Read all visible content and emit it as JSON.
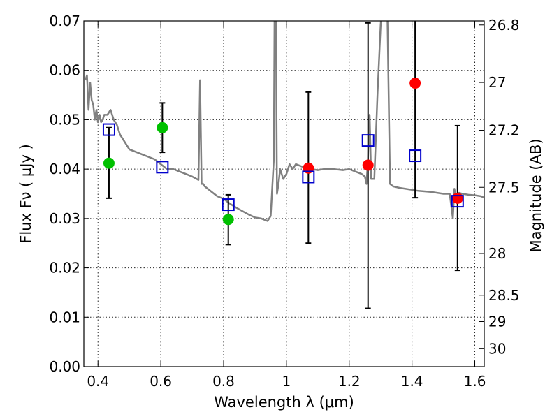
{
  "chart_data": {
    "type": "scatter",
    "xlabel": "Wavelength  λ (μm)",
    "ylabel": "Flux  Fν ( μJy )",
    "ylabel_right": "Magnitude (AB)",
    "xlim": [
      0.355,
      1.63
    ],
    "ylim": [
      0.0,
      0.07
    ],
    "grid": true,
    "x_ticks": [
      {
        "value": 0.4,
        "label": "0.4"
      },
      {
        "value": 0.6,
        "label": "0.6"
      },
      {
        "value": 0.8,
        "label": "0.8"
      },
      {
        "value": 1.0,
        "label": "1"
      },
      {
        "value": 1.2,
        "label": "1.2"
      },
      {
        "value": 1.4,
        "label": "1.4"
      },
      {
        "value": 1.6,
        "label": "1.6"
      }
    ],
    "y_ticks": [
      {
        "value": 0.0,
        "label": "0.00"
      },
      {
        "value": 0.01,
        "label": "0.01"
      },
      {
        "value": 0.02,
        "label": "0.02"
      },
      {
        "value": 0.03,
        "label": "0.03"
      },
      {
        "value": 0.04,
        "label": "0.04"
      },
      {
        "value": 0.05,
        "label": "0.05"
      },
      {
        "value": 0.06,
        "label": "0.06"
      },
      {
        "value": 0.07,
        "label": "0.07"
      }
    ],
    "right_ticks": [
      {
        "value": 26.8,
        "label": "26.8"
      },
      {
        "value": 27.0,
        "label": "27"
      },
      {
        "value": 27.2,
        "label": "27.2"
      },
      {
        "value": 27.5,
        "label": "27.5"
      },
      {
        "value": 28.0,
        "label": "28"
      },
      {
        "value": 28.5,
        "label": "28.5"
      },
      {
        "value": 29.0,
        "label": "29"
      },
      {
        "value": 30.0,
        "label": "30"
      }
    ],
    "model_spectrum": {
      "color": "#808080",
      "x": [
        0.36,
        0.365,
        0.37,
        0.375,
        0.38,
        0.385,
        0.39,
        0.395,
        0.4,
        0.405,
        0.41,
        0.415,
        0.42,
        0.43,
        0.44,
        0.45,
        0.46,
        0.47,
        0.48,
        0.49,
        0.5,
        0.52,
        0.54,
        0.56,
        0.58,
        0.6,
        0.62,
        0.64,
        0.66,
        0.68,
        0.7,
        0.72,
        0.725,
        0.73,
        0.735,
        0.74,
        0.76,
        0.78,
        0.8,
        0.82,
        0.84,
        0.86,
        0.88,
        0.9,
        0.92,
        0.94,
        0.95,
        0.96,
        0.963,
        0.966,
        0.97,
        0.975,
        0.98,
        0.99,
        1.0,
        1.01,
        1.02,
        1.03,
        1.05,
        1.08,
        1.1,
        1.12,
        1.15,
        1.18,
        1.2,
        1.22,
        1.24,
        1.25,
        1.255,
        1.26,
        1.265,
        1.27,
        1.28,
        1.29,
        1.3,
        1.31,
        1.32,
        1.33,
        1.34,
        1.36,
        1.38,
        1.4,
        1.42,
        1.44,
        1.46,
        1.48,
        1.5,
        1.52,
        1.53,
        1.535,
        1.54,
        1.545,
        1.55,
        1.56,
        1.58,
        1.6,
        1.62,
        1.63
      ],
      "y": [
        0.058,
        0.059,
        0.052,
        0.0575,
        0.054,
        0.053,
        0.05,
        0.052,
        0.0495,
        0.051,
        0.0495,
        0.05,
        0.051,
        0.051,
        0.052,
        0.05,
        0.049,
        0.047,
        0.046,
        0.045,
        0.044,
        0.0435,
        0.043,
        0.0425,
        0.042,
        0.041,
        0.04,
        0.04,
        0.0395,
        0.039,
        0.0385,
        0.0378,
        0.058,
        0.037,
        0.037,
        0.0365,
        0.0355,
        0.0345,
        0.034,
        0.033,
        0.0322,
        0.0315,
        0.0308,
        0.0302,
        0.03,
        0.0295,
        0.0305,
        0.042,
        0.078,
        0.078,
        0.035,
        0.037,
        0.04,
        0.038,
        0.039,
        0.041,
        0.04,
        0.041,
        0.0405,
        0.04,
        0.0398,
        0.04,
        0.04,
        0.0398,
        0.04,
        0.0395,
        0.039,
        0.0385,
        0.037,
        0.042,
        0.051,
        0.038,
        0.038,
        0.055,
        0.069,
        0.078,
        0.078,
        0.037,
        0.0365,
        0.0362,
        0.036,
        0.0358,
        0.0356,
        0.0355,
        0.0354,
        0.0352,
        0.035,
        0.035,
        0.03,
        0.036,
        0.034,
        0.033,
        0.0352,
        0.035,
        0.0348,
        0.0347,
        0.0345,
        0.0342
      ]
    },
    "series": [
      {
        "name": "",
        "marker": "circle",
        "color": "#00c000",
        "points": [
          {
            "x": 0.435,
            "y": 0.0412,
            "err_low": 0.0341,
            "err_high": 0.0484
          },
          {
            "x": 0.605,
            "y": 0.0484,
            "err_low": 0.0434,
            "err_high": 0.0534
          },
          {
            "x": 0.815,
            "y": 0.0298,
            "err_low": 0.0247,
            "err_high": 0.0348
          }
        ]
      },
      {
        "name": "",
        "marker": "circle",
        "color": "#ff0000",
        "points": [
          {
            "x": 1.07,
            "y": 0.0402,
            "err_low": 0.025,
            "err_high": 0.0556
          },
          {
            "x": 1.26,
            "y": 0.0408,
            "err_low": 0.0118,
            "err_high": 0.0696
          },
          {
            "x": 1.41,
            "y": 0.0574,
            "err_low": 0.0342,
            "err_high": 0.081
          },
          {
            "x": 1.545,
            "y": 0.0341,
            "err_low": 0.0195,
            "err_high": 0.0488
          }
        ]
      },
      {
        "name": "",
        "marker": "square",
        "color": "#0000cc",
        "points": [
          {
            "x": 0.435,
            "y": 0.048
          },
          {
            "x": 0.605,
            "y": 0.0404
          },
          {
            "x": 0.815,
            "y": 0.0328
          },
          {
            "x": 1.07,
            "y": 0.0384
          },
          {
            "x": 1.26,
            "y": 0.0458
          },
          {
            "x": 1.41,
            "y": 0.0427
          },
          {
            "x": 1.545,
            "y": 0.0335
          }
        ]
      }
    ]
  }
}
